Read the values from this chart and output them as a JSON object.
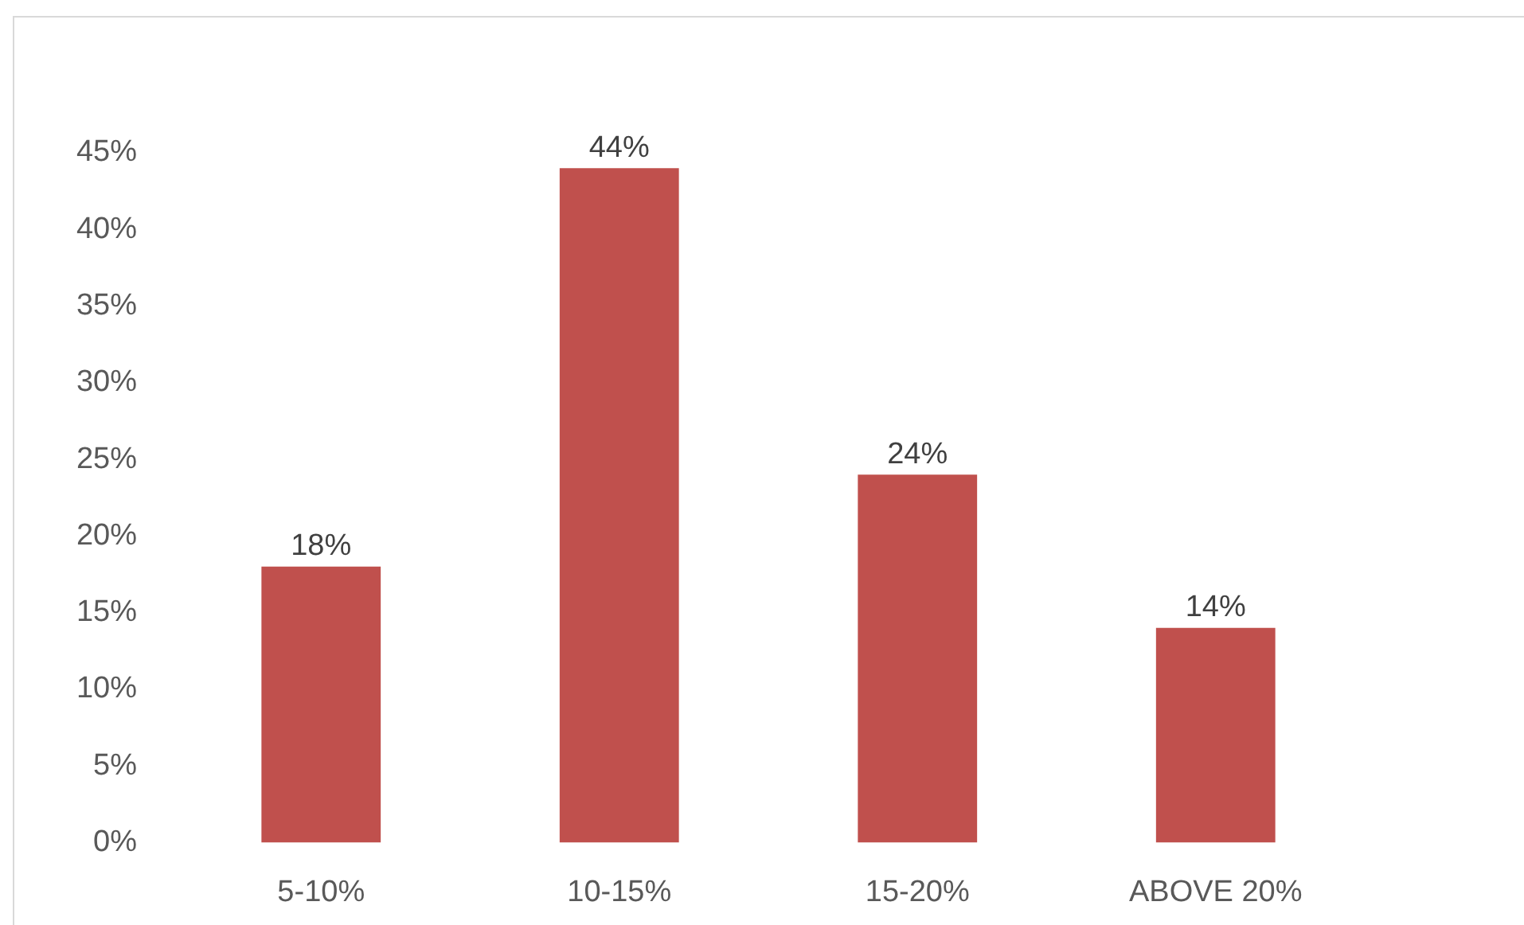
{
  "chart_data": {
    "type": "bar",
    "categories": [
      "5-10%",
      "10-15%",
      "15-20%",
      "ABOVE 20%"
    ],
    "values": [
      18,
      44,
      24,
      14
    ],
    "value_labels": [
      "18%",
      "44%",
      "24%",
      "14%"
    ],
    "color": "#c0504d",
    "ylim": [
      0,
      45
    ],
    "yticks": [
      {
        "value": 0,
        "label": "0%"
      },
      {
        "value": 5,
        "label": "5%"
      },
      {
        "value": 10,
        "label": "10%"
      },
      {
        "value": 15,
        "label": "15%"
      },
      {
        "value": 20,
        "label": "20%"
      },
      {
        "value": 25,
        "label": "25%"
      },
      {
        "value": 30,
        "label": "30%"
      },
      {
        "value": 35,
        "label": "35%"
      },
      {
        "value": 40,
        "label": "40%"
      },
      {
        "value": 45,
        "label": "45%"
      }
    ]
  }
}
